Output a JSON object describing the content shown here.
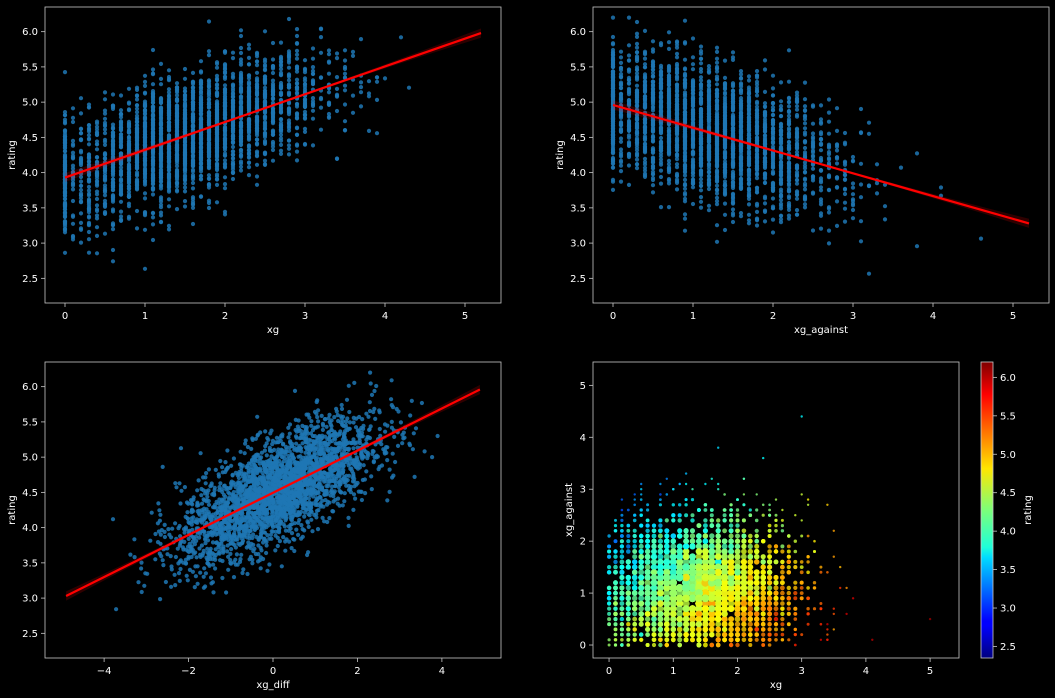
{
  "chart_data": [
    {
      "type": "scatter",
      "xlabel": "xg",
      "ylabel": "rating",
      "xlim": [
        -0.25,
        5.45
      ],
      "ylim": [
        2.15,
        6.35
      ],
      "xticks": [
        "0",
        "1",
        "2",
        "3",
        "4",
        "5"
      ],
      "yticks": [
        "2.5",
        "3.0",
        "3.5",
        "4.0",
        "4.5",
        "5.0",
        "5.5",
        "6.0"
      ],
      "point_color": "#1f77b4",
      "regression": {
        "color": "#ff0000",
        "x": [
          0,
          5.2
        ],
        "y": [
          3.93,
          5.98
        ]
      },
      "cloud": {
        "x_center": 1.5,
        "x_sd": 0.85,
        "x_min": 0,
        "x_max": 5.2,
        "x_step": 0.1,
        "y_sd": 0.42,
        "y_min": 2.3,
        "y_max": 6.2,
        "count": 2800
      }
    },
    {
      "type": "scatter",
      "xlabel": "xg_against",
      "ylabel": "rating",
      "xlim": [
        -0.25,
        5.45
      ],
      "ylim": [
        2.15,
        6.35
      ],
      "xticks": [
        "0",
        "1",
        "2",
        "3",
        "4",
        "5"
      ],
      "yticks": [
        "2.5",
        "3.0",
        "3.5",
        "4.0",
        "4.5",
        "5.0",
        "5.5",
        "6.0"
      ],
      "point_color": "#1f77b4",
      "regression": {
        "color": "#ff0000",
        "x": [
          0,
          5.2
        ],
        "y": [
          4.96,
          3.28
        ]
      },
      "cloud": {
        "x_center": 1.2,
        "x_sd": 0.8,
        "x_min": 0,
        "x_max": 5.2,
        "x_step": 0.1,
        "y_sd": 0.45,
        "y_min": 2.3,
        "y_max": 6.2,
        "count": 2800
      }
    },
    {
      "type": "scatter",
      "xlabel": "xg_diff",
      "ylabel": "rating",
      "xlim": [
        -5.4,
        5.4
      ],
      "ylim": [
        2.15,
        6.35
      ],
      "xticks": [
        "−4",
        "−2",
        "0",
        "2",
        "4"
      ],
      "yticks": [
        "2.5",
        "3.0",
        "3.5",
        "4.0",
        "4.5",
        "5.0",
        "5.5",
        "6.0"
      ],
      "point_color": "#1f77b4",
      "regression": {
        "color": "#ff0000",
        "x": [
          -4.9,
          4.9
        ],
        "y": [
          3.03,
          5.96
        ]
      },
      "cloud": {
        "x_center": 0.1,
        "x_sd": 1.15,
        "x_min": -4.9,
        "x_max": 4.9,
        "x_step": 0,
        "y_sd": 0.36,
        "y_min": 2.3,
        "y_max": 6.2,
        "count": 2800
      }
    },
    {
      "type": "scatter",
      "xlabel": "xg",
      "ylabel": "xg_against",
      "xlim": [
        -0.25,
        5.45
      ],
      "ylim": [
        -0.25,
        5.45
      ],
      "xticks": [
        "0",
        "1",
        "2",
        "3",
        "4",
        "5"
      ],
      "yticks": [
        "0",
        "1",
        "2",
        "3",
        "4",
        "5"
      ],
      "colorbar": {
        "label": "rating",
        "range": [
          2.35,
          6.2
        ],
        "ticks": [
          "2.5",
          "3.0",
          "3.5",
          "4.0",
          "4.5",
          "5.0",
          "5.5",
          "6.0"
        ],
        "colormap": "jet"
      },
      "cloud": {
        "x_center": 1.4,
        "x_sd": 0.85,
        "y_center": 1.15,
        "y_sd": 0.75,
        "min": 0,
        "max": 5.2,
        "step": 0.1,
        "count": 2200
      }
    }
  ]
}
